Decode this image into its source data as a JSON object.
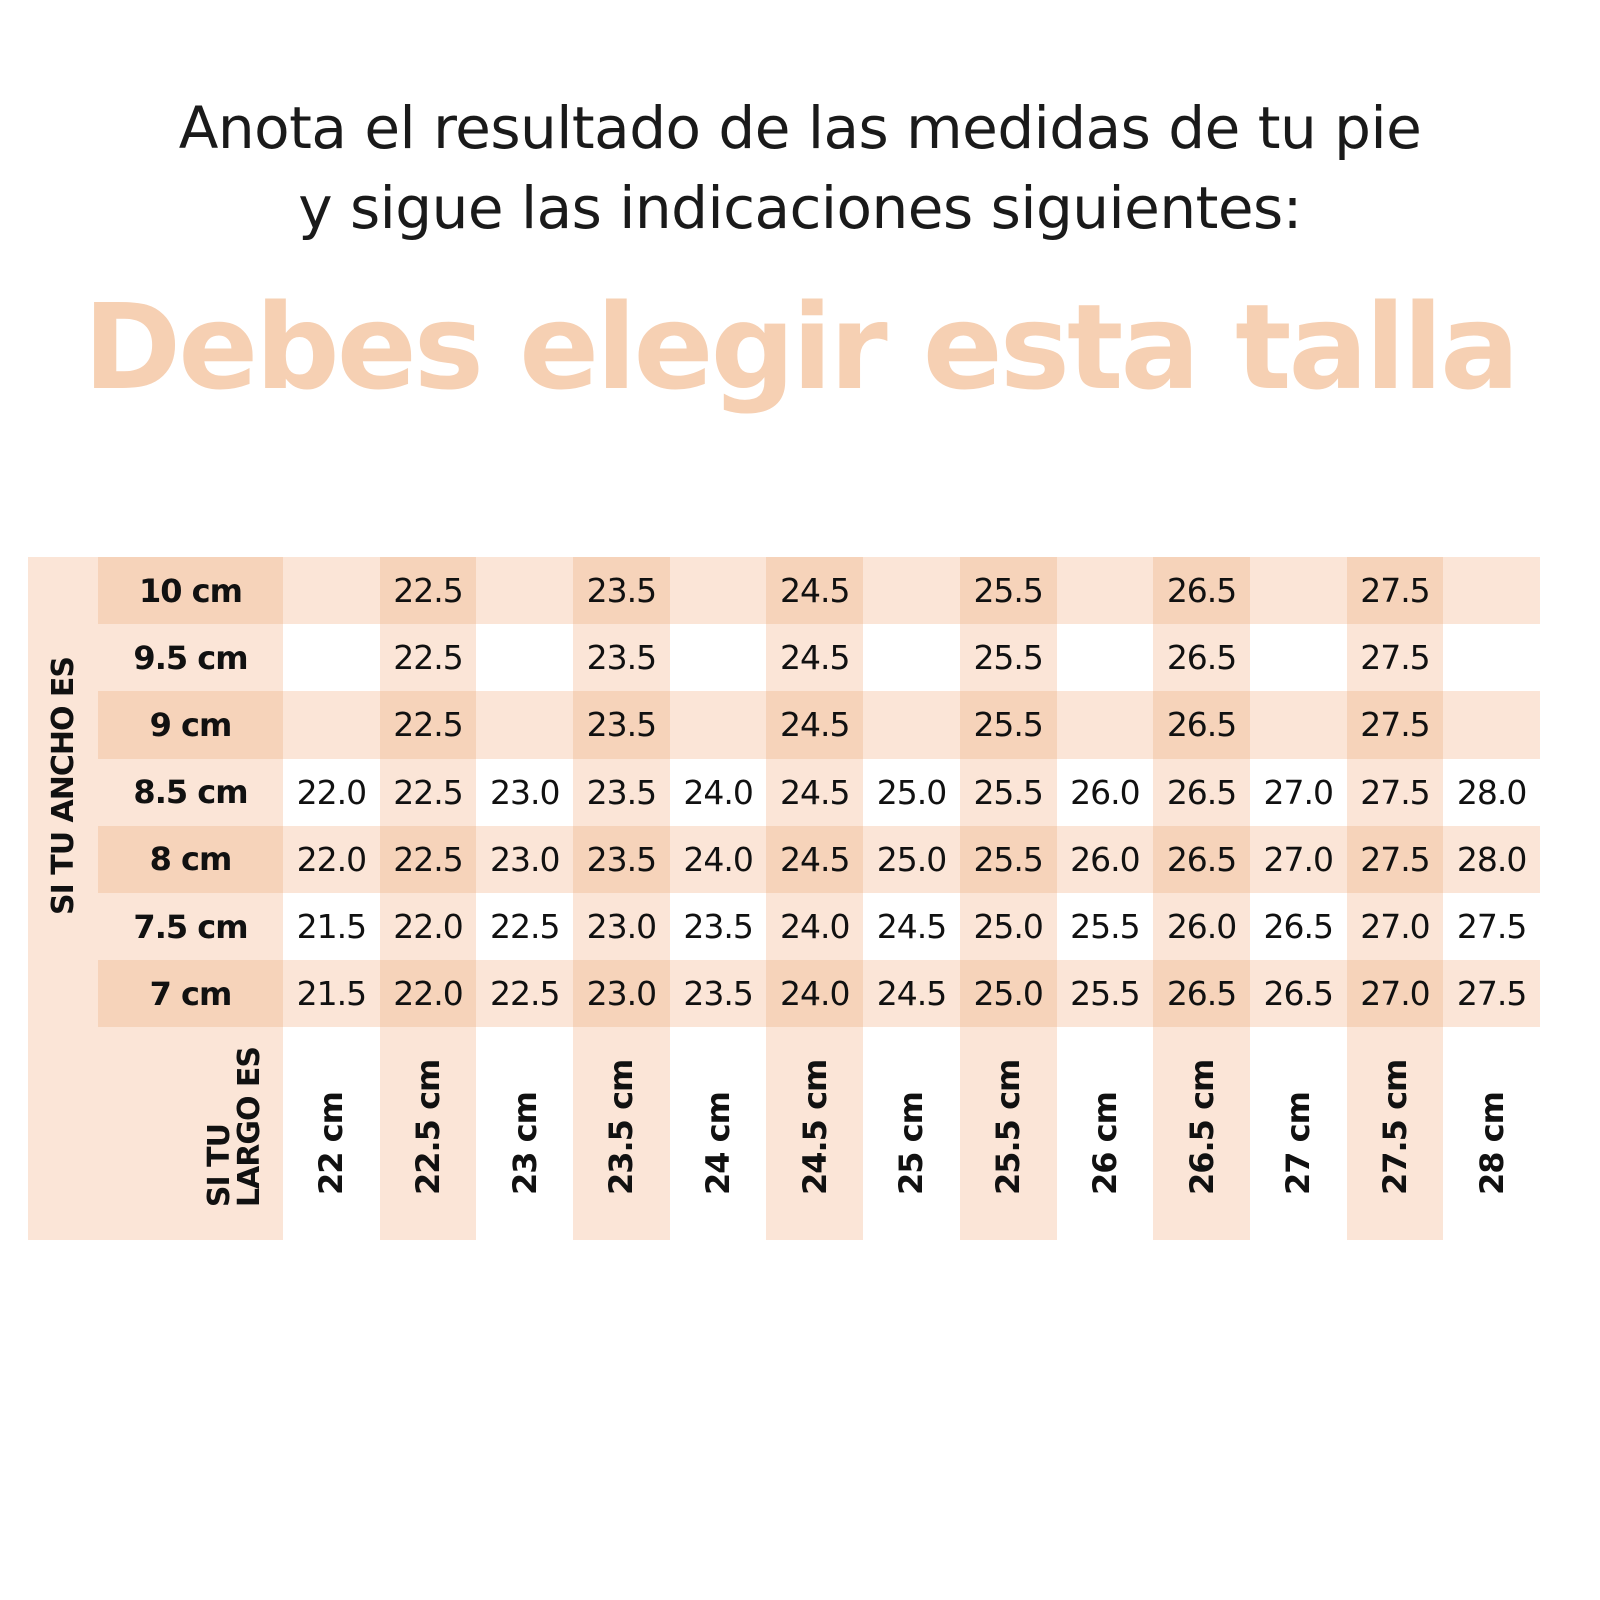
{
  "intro": {
    "line1": "Anota el resultado de las medidas de tu pie",
    "line2": "y sigue las indicaciones siguientes:"
  },
  "headline": "Debes elegir esta talla",
  "colors": {
    "light": "#fbe5d7",
    "dark": "#f6d3ba",
    "headline": "#f6d0b3"
  },
  "table": {
    "width_label": "SI TU ANCHO ES",
    "length_label_1": "SI TU",
    "length_label_2": "LARGO ES",
    "lengths": [
      "22 cm",
      "22.5 cm",
      "23 cm",
      "23.5 cm",
      "24 cm",
      "24.5 cm",
      "25 cm",
      "25.5 cm",
      "26 cm",
      "26.5 cm",
      "27 cm",
      "27.5 cm",
      "28 cm"
    ],
    "rows": [
      {
        "width": "10 cm",
        "sizes": [
          "",
          "22.5",
          "",
          "23.5",
          "",
          "24.5",
          "",
          "25.5",
          "",
          "26.5",
          "",
          "27.5",
          ""
        ]
      },
      {
        "width": "9.5 cm",
        "sizes": [
          "",
          "22.5",
          "",
          "23.5",
          "",
          "24.5",
          "",
          "25.5",
          "",
          "26.5",
          "",
          "27.5",
          ""
        ]
      },
      {
        "width": "9 cm",
        "sizes": [
          "",
          "22.5",
          "",
          "23.5",
          "",
          "24.5",
          "",
          "25.5",
          "",
          "26.5",
          "",
          "27.5",
          ""
        ]
      },
      {
        "width": "8.5 cm",
        "sizes": [
          "22.0",
          "22.5",
          "23.0",
          "23.5",
          "24.0",
          "24.5",
          "25.0",
          "25.5",
          "26.0",
          "26.5",
          "27.0",
          "27.5",
          "28.0"
        ]
      },
      {
        "width": "8 cm",
        "sizes": [
          "22.0",
          "22.5",
          "23.0",
          "23.5",
          "24.0",
          "24.5",
          "25.0",
          "25.5",
          "26.0",
          "26.5",
          "27.0",
          "27.5",
          "28.0"
        ]
      },
      {
        "width": "7.5 cm",
        "sizes": [
          "21.5",
          "22.0",
          "22.5",
          "23.0",
          "23.5",
          "24.0",
          "24.5",
          "25.0",
          "25.5",
          "26.0",
          "26.5",
          "27.0",
          "27.5"
        ]
      },
      {
        "width": "7 cm",
        "sizes": [
          "21.5",
          "22.0",
          "22.5",
          "23.0",
          "23.5",
          "24.0",
          "24.5",
          "25.0",
          "25.5",
          "26.5",
          "26.5",
          "27.0",
          "27.5"
        ]
      }
    ]
  }
}
